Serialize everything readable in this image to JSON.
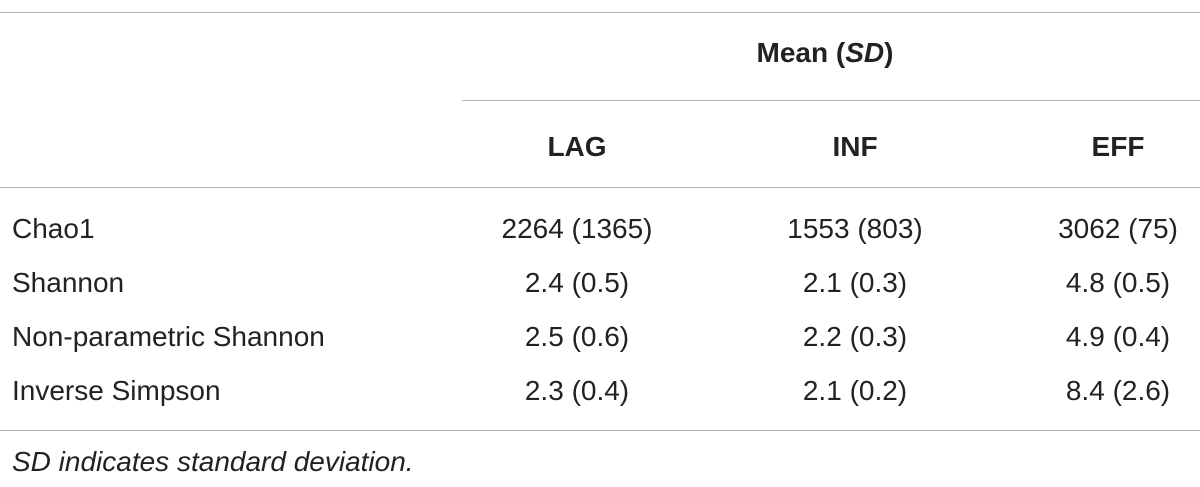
{
  "header": {
    "group": {
      "before": "Mean (",
      "italic": "SD",
      "after": ")"
    },
    "columns": [
      "LAG",
      "INF",
      "EFF"
    ]
  },
  "table": {
    "rows": [
      [
        "Chao1",
        "2264 (1365)",
        "1553 (803)",
        "3062 (75)"
      ],
      [
        "Shannon",
        "2.4 (0.5)",
        "2.1 (0.3)",
        "4.8 (0.5)"
      ],
      [
        "Non-parametric Shannon",
        "2.5 (0.6)",
        "2.2 (0.3)",
        "4.9 (0.4)"
      ],
      [
        "Inverse Simpson",
        "2.3 (0.4)",
        "2.1 (0.2)",
        "8.4 (2.6)"
      ]
    ]
  },
  "footnote": "SD indicates standard deviation."
}
